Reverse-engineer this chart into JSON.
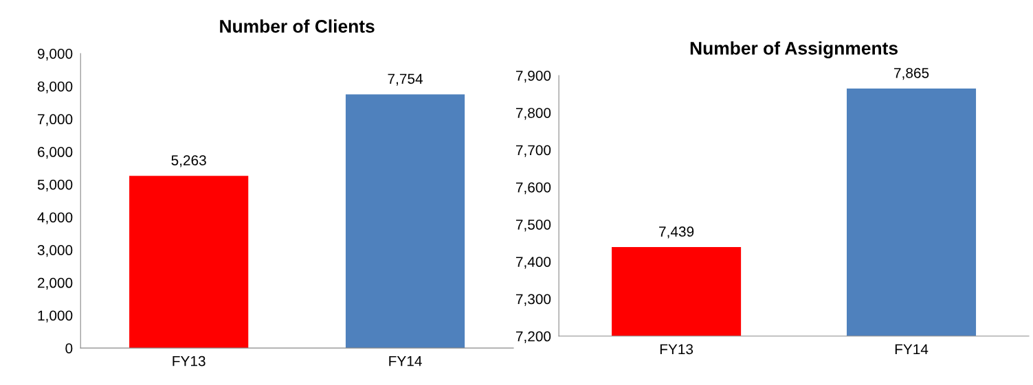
{
  "chart_data": [
    {
      "type": "bar",
      "title": "Number of Clients",
      "categories": [
        "FY13",
        "FY14"
      ],
      "values": [
        5263,
        7754
      ],
      "colors": [
        "#ff0000",
        "#4f81bd"
      ],
      "ylim": [
        0,
        9000
      ],
      "yticks": [
        0,
        {
          "value": 1000,
          "label": "1,000"
        },
        {
          "value": 2000,
          "label": "2,000"
        },
        {
          "value": 3000,
          "label": "3,000"
        },
        {
          "value": 4000,
          "label": "4,000"
        },
        {
          "value": 5000,
          "label": "5,000"
        },
        {
          "value": 6000,
          "label": "6,000"
        },
        {
          "value": 7000,
          "label": "7,000"
        },
        {
          "value": 8000,
          "label": "8,000"
        },
        {
          "value": 9000,
          "label": "9,000"
        }
      ],
      "value_labels": [
        "5,263",
        "7,754"
      ],
      "grid": false,
      "legend": false
    },
    {
      "type": "bar",
      "title": "Number of Assignments",
      "categories": [
        "FY13",
        "FY14"
      ],
      "values": [
        7439,
        7865
      ],
      "colors": [
        "#ff0000",
        "#4f81bd"
      ],
      "ylim": [
        7200,
        7900
      ],
      "yticks": [
        {
          "value": 7200,
          "label": "7,200"
        },
        {
          "value": 7300,
          "label": "7,300"
        },
        {
          "value": 7400,
          "label": "7,400"
        },
        {
          "value": 7500,
          "label": "7,500"
        },
        {
          "value": 7600,
          "label": "7,600"
        },
        {
          "value": 7700,
          "label": "7,700"
        },
        {
          "value": 7800,
          "label": "7,800"
        },
        {
          "value": 7900,
          "label": "7,900"
        }
      ],
      "value_labels": [
        "7,439",
        "7,865"
      ],
      "grid": false,
      "legend": false
    }
  ]
}
